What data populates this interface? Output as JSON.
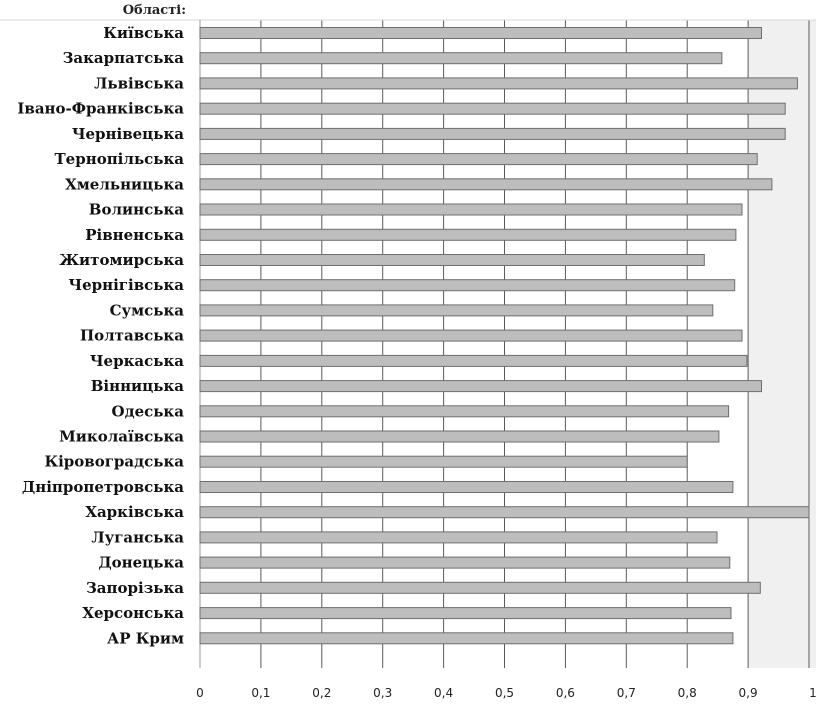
{
  "chart_data": {
    "type": "bar",
    "orientation": "horizontal",
    "category_header": "Області:",
    "categories": [
      "Київська",
      "Закарпатська",
      "Львівська",
      "Івано-Франківська",
      "Чернівецька",
      "Тернопільська",
      "Хмельницька",
      "Волинська",
      "Рівненська",
      "Житомирська",
      "Чернігівська",
      "Сумська",
      "Полтавська",
      "Черкаська",
      "Вінницька",
      "Одеська",
      "Миколаївська",
      "Кіровоградська",
      "Дніпропетровська",
      "Харківська",
      "Луганська",
      "Донецька",
      "Запорізька",
      "Херсонська",
      "АР Крим"
    ],
    "values": [
      0.922,
      0.857,
      0.981,
      0.961,
      0.961,
      0.915,
      0.939,
      0.89,
      0.88,
      0.828,
      0.878,
      0.842,
      0.89,
      0.898,
      0.922,
      0.868,
      0.852,
      0.8,
      0.875,
      1.0,
      0.849,
      0.87,
      0.92,
      0.872,
      0.875
    ],
    "xlim": [
      0,
      1
    ],
    "xticks": [
      0,
      0.1,
      0.2,
      0.3,
      0.4,
      0.5,
      0.6,
      0.7,
      0.8,
      0.9,
      1
    ],
    "xtick_labels": [
      "0",
      "0,1",
      "0,2",
      "0,3",
      "0,4",
      "0,5",
      "0,6",
      "0,7",
      "0,8",
      "0,9",
      "1"
    ],
    "grid": true,
    "legend": "none",
    "colors": {
      "bar_fill": "#bdbdbd",
      "bar_stroke": "#6e6e6e",
      "grid": "#5a5a5a",
      "shaded_band": "#f0f0f0",
      "plot_border": "#9a9a9a"
    }
  }
}
